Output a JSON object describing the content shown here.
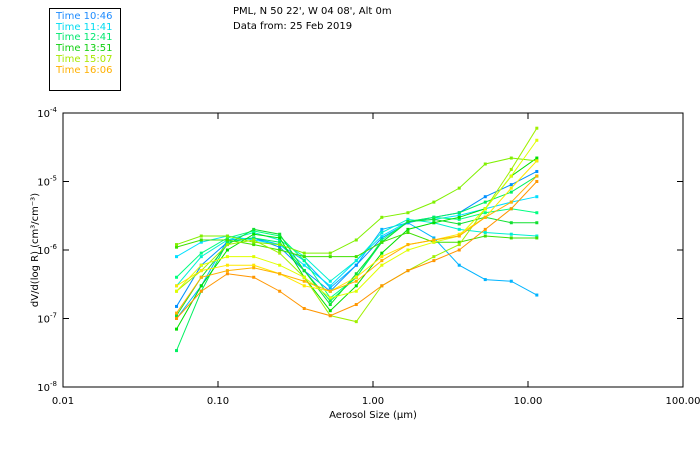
{
  "header": {
    "line1": "PML, N 50 22', W 04 08', Alt 0m",
    "line2": "Data from: 25 Feb 2019"
  },
  "legend": [
    {
      "label": "Time 10:46",
      "color": "#1e8cff"
    },
    {
      "label": "Time 11:41",
      "color": "#00dcf0"
    },
    {
      "label": "Time 12:41",
      "color": "#00e870"
    },
    {
      "label": "Time 13:51",
      "color": "#10d010"
    },
    {
      "label": "Time 15:07",
      "color": "#a8e800"
    },
    {
      "label": "Time 16:06",
      "color": "#ffb000"
    }
  ],
  "chart_data": {
    "type": "line",
    "title": "",
    "xlabel": "Aerosol Size (µm)",
    "ylabel": "dV/d(log R) (cm³/cm⁻³)",
    "xscale": "log",
    "yscale": "log",
    "xlim": [
      0.01,
      100
    ],
    "ylim": [
      1e-08,
      0.0001
    ],
    "xticks": [
      {
        "v": 0.01,
        "label": "0.01"
      },
      {
        "v": 0.1,
        "label": "0.10"
      },
      {
        "v": 1,
        "label": "1.00"
      },
      {
        "v": 10,
        "label": "10.00"
      },
      {
        "v": 100,
        "label": "100.00"
      }
    ],
    "yticks": [
      {
        "v": 0.0001,
        "exp": "-4"
      },
      {
        "v": 1e-05,
        "exp": "-5"
      },
      {
        "v": 1e-06,
        "exp": "-6"
      },
      {
        "v": 1e-07,
        "exp": "-7"
      },
      {
        "v": 1e-08,
        "exp": "-8"
      }
    ],
    "ytick_base": "10",
    "x": [
      0.054,
      0.078,
      0.115,
      0.17,
      0.25,
      0.36,
      0.53,
      0.78,
      1.14,
      1.68,
      2.47,
      3.6,
      5.3,
      7.8,
      11.4
    ],
    "series": [
      {
        "name": "Time 10:46",
        "color": "#00b4ff",
        "values": [
          1e-07,
          3e-07,
          1.4e-06,
          1.5e-06,
          1.2e-06,
          7e-07,
          2.8e-07,
          6e-07,
          2e-06,
          2.5e-06,
          1.5e-06,
          6e-07,
          3.7e-07,
          3.5e-07,
          2.2e-07
        ]
      },
      {
        "name": "Time 10:46",
        "color": "#0090ff",
        "values": [
          1.5e-07,
          6e-07,
          1.3e-06,
          1.5e-06,
          1.1e-06,
          5e-07,
          2.5e-07,
          6e-07,
          1.5e-06,
          2.5e-06,
          3e-06,
          3.5e-06,
          6e-06,
          9e-06,
          1.4e-05
        ]
      },
      {
        "name": "Time 11:41",
        "color": "#00e0ff",
        "values": [
          8e-07,
          1.3e-06,
          1.6e-06,
          1.4e-06,
          1.2e-06,
          6e-07,
          3e-07,
          7e-07,
          1.6e-06,
          2.6e-06,
          2.8e-06,
          3.2e-06,
          4e-06,
          5e-06,
          6e-06
        ]
      },
      {
        "name": "Time 11:41",
        "color": "#00f0d0",
        "values": [
          3e-07,
          8e-07,
          1.4e-06,
          1.8e-06,
          1.4e-06,
          8e-07,
          3.5e-07,
          7e-07,
          1.8e-06,
          2.8e-06,
          2.5e-06,
          2e-06,
          1.8e-06,
          1.7e-06,
          1.6e-06
        ]
      },
      {
        "name": "Time 12:41",
        "color": "#00ff80",
        "values": [
          4e-07,
          9e-07,
          1.5e-06,
          1.9e-06,
          1.6e-06,
          7e-07,
          2e-07,
          4e-07,
          1.4e-06,
          2.6e-06,
          3e-06,
          2.8e-06,
          3.5e-06,
          4e-06,
          3.5e-06
        ]
      },
      {
        "name": "Time 12:41",
        "color": "#00f060",
        "values": [
          3.4e-08,
          2.5e-07,
          1.3e-06,
          1.5e-06,
          1.3e-06,
          5e-07,
          1.8e-07,
          4e-07,
          1.3e-06,
          2.6e-06,
          3e-06,
          3.5e-06,
          5e-06,
          7e-06,
          1.2e-05
        ]
      },
      {
        "name": "Time 13:51",
        "color": "#10e030",
        "values": [
          1.1e-07,
          4e-07,
          1.2e-06,
          2e-06,
          1.7e-06,
          5e-07,
          1.6e-07,
          4.5e-07,
          1.3e-06,
          2.6e-06,
          2.8e-06,
          2.4e-06,
          3e-06,
          2.5e-06,
          2.5e-06
        ]
      },
      {
        "name": "Time 13:51",
        "color": "#00e000",
        "values": [
          7e-08,
          3e-07,
          1e-06,
          1.7e-06,
          1.5e-06,
          4e-07,
          1.3e-07,
          3e-07,
          9e-07,
          2e-06,
          2.5e-06,
          3e-06,
          4e-06,
          1.2e-05,
          2.2e-05
        ]
      },
      {
        "name": "Time 13:51",
        "color": "#40e000",
        "values": [
          1.1e-06,
          1.4e-06,
          1.4e-06,
          1.2e-06,
          1e-06,
          8e-07,
          8e-07,
          8e-07,
          1.3e-06,
          1.8e-06,
          1.3e-06,
          1.3e-06,
          1.6e-06,
          1.5e-06,
          1.5e-06
        ]
      },
      {
        "name": "Time 15:07",
        "color": "#80f000",
        "values": [
          1.2e-06,
          1.6e-06,
          1.6e-06,
          1.3e-06,
          1.2e-06,
          9e-07,
          9e-07,
          1.4e-06,
          3e-06,
          3.5e-06,
          5e-06,
          8e-06,
          1.8e-05,
          2.2e-05,
          2e-05
        ]
      },
      {
        "name": "Time 15:07",
        "color": "#a0f000",
        "values": [
          2.5e-07,
          5e-07,
          1.2e-06,
          1.4e-06,
          9e-07,
          4e-07,
          1.1e-07,
          9e-08,
          3e-07,
          5e-07,
          8e-07,
          1.2e-06,
          4e-06,
          1.5e-05,
          6e-05
        ]
      },
      {
        "name": "Time 15:07",
        "color": "#e0ff00",
        "values": [
          2.5e-07,
          6e-07,
          8e-07,
          8e-07,
          6e-07,
          4e-07,
          2e-07,
          2.5e-07,
          6e-07,
          1e-06,
          1.3e-06,
          1.6e-06,
          4e-06,
          1.2e-05,
          4e-05
        ]
      },
      {
        "name": "Time 16:06",
        "color": "#ffe800",
        "values": [
          3e-07,
          5e-07,
          6e-07,
          6e-07,
          4.5e-07,
          3e-07,
          2.5e-07,
          4e-07,
          8e-07,
          1.2e-06,
          1.4e-06,
          1.7e-06,
          3e-06,
          8e-06,
          2e-05
        ]
      },
      {
        "name": "Time 16:06",
        "color": "#ffb000",
        "values": [
          1.2e-07,
          4e-07,
          5e-07,
          5.5e-07,
          4.5e-07,
          3.5e-07,
          2.5e-07,
          3.5e-07,
          7e-07,
          1.2e-06,
          1.4e-06,
          1.6e-06,
          3e-06,
          5e-06,
          1.2e-05
        ]
      },
      {
        "name": "Time 16:06",
        "color": "#ff9600",
        "values": [
          1e-07,
          2.5e-07,
          4.5e-07,
          4e-07,
          2.5e-07,
          1.4e-07,
          1.1e-07,
          1.6e-07,
          3e-07,
          5e-07,
          7e-07,
          1e-06,
          2e-06,
          4e-06,
          1e-05
        ]
      }
    ]
  }
}
